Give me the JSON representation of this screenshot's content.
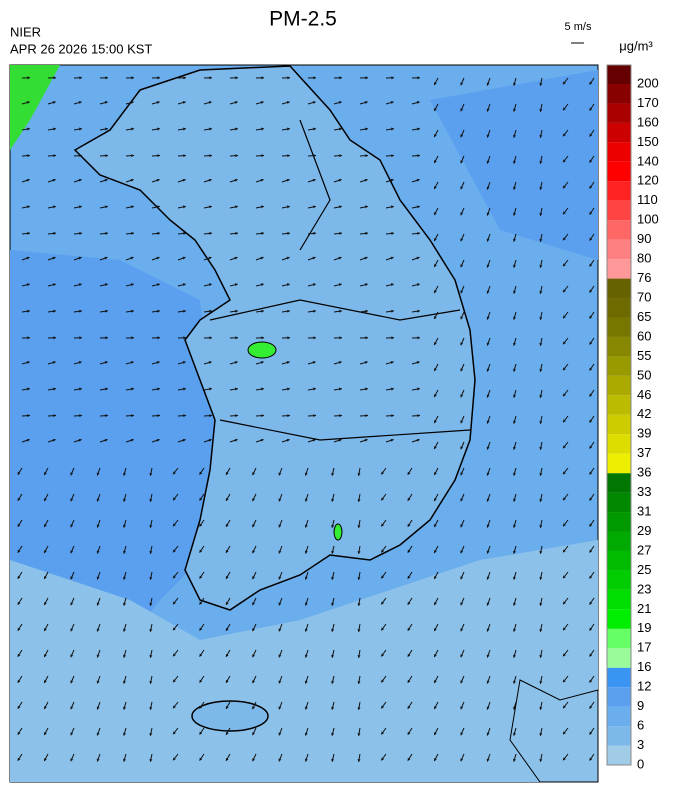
{
  "header": {
    "title": "PM-2.5",
    "agency": "NIER",
    "timestamp": "APR 26 2026 15:00 KST"
  },
  "wind_reference": "5 m/s",
  "colorbar": {
    "units": "μg/m³",
    "ticks": [
      0,
      3,
      6,
      9,
      12,
      16,
      17,
      19,
      21,
      23,
      25,
      27,
      29,
      31,
      33,
      36,
      37,
      39,
      42,
      46,
      50,
      55,
      60,
      65,
      70,
      76,
      80,
      90,
      100,
      110,
      120,
      140,
      150,
      160,
      170,
      200
    ],
    "colors": [
      "#a0cce8",
      "#7db8ea",
      "#6aaeee",
      "#5aa0ee",
      "#3a95f2",
      "#9afb9a",
      "#66ff66",
      "#00ee00",
      "#00dd00",
      "#00cc00",
      "#00bb00",
      "#00aa00",
      "#009900",
      "#008800",
      "#007700",
      "#eeee00",
      "#dddd00",
      "#cccc00",
      "#bbbb00",
      "#aaaa00",
      "#999900",
      "#888800",
      "#777700",
      "#6e6a00",
      "#666200",
      "#ff9999",
      "#ff8080",
      "#ff6666",
      "#ff4444",
      "#ff2222",
      "#ff0000",
      "#ee0000",
      "#cc0000",
      "#aa0000",
      "#880000",
      "#660000"
    ]
  }
}
